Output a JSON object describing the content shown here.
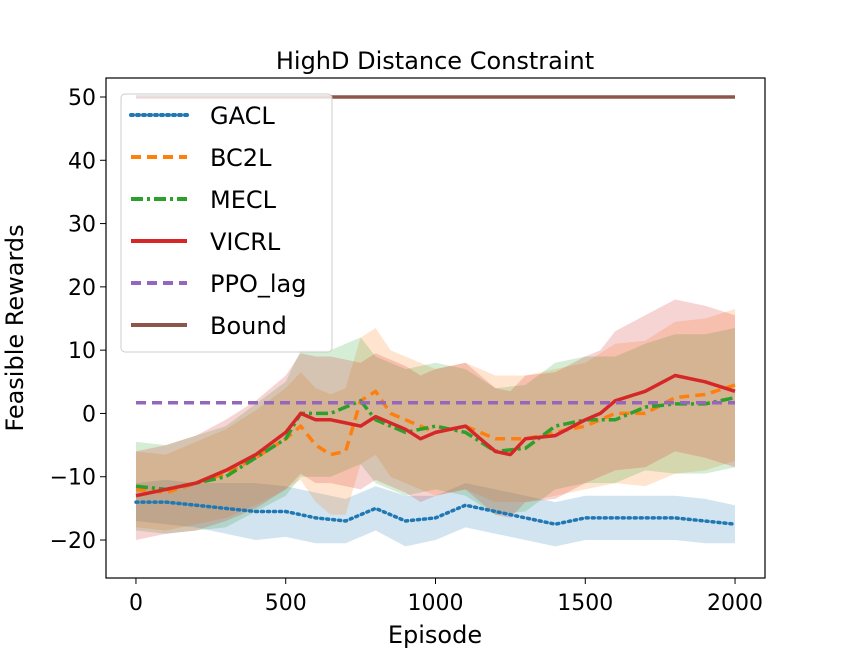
{
  "chart_data": {
    "type": "line",
    "title": "HighD Distance Constraint",
    "xlabel": "Episode",
    "ylabel": "Feasible Rewards",
    "xlim": [
      -100,
      2100
    ],
    "ylim": [
      -26,
      53
    ],
    "xticks": [
      0,
      500,
      1000,
      1500,
      2000
    ],
    "yticks": [
      -20,
      -10,
      0,
      10,
      20,
      30,
      40,
      50
    ],
    "ytick_labels": [
      "−20",
      "−10",
      "0",
      "10",
      "20",
      "30",
      "40",
      "50"
    ],
    "grid": false,
    "legend_position": "upper-left",
    "series": [
      {
        "name": "GACL",
        "color": "#1f77b4",
        "style": "dotted",
        "band_color": "#1f77b4",
        "x": [
          0,
          100,
          200,
          300,
          400,
          500,
          600,
          700,
          800,
          900,
          1000,
          1100,
          1200,
          1300,
          1400,
          1500,
          1600,
          1700,
          1800,
          1900,
          2000
        ],
        "y": [
          -14,
          -14,
          -14.5,
          -15,
          -15.5,
          -15.5,
          -16.5,
          -17,
          -15,
          -17,
          -16.5,
          -14.5,
          -15.5,
          -16.5,
          -17.5,
          -16.5,
          -16.5,
          -16.5,
          -16.5,
          -17,
          -17.5
        ],
        "band": [
          3,
          3.5,
          3.5,
          4,
          4.5,
          4,
          4,
          3.5,
          3.5,
          4,
          3.5,
          3.5,
          3.5,
          3.5,
          3.5,
          3.5,
          3.5,
          3.5,
          3.5,
          3.5,
          3
        ]
      },
      {
        "name": "BC2L",
        "color": "#ff7f0e",
        "style": "dashed",
        "band_color": "#ff7f0e",
        "x": [
          0,
          100,
          200,
          300,
          400,
          500,
          550,
          600,
          650,
          700,
          750,
          800,
          850,
          900,
          1000,
          1100,
          1200,
          1300,
          1400,
          1500,
          1600,
          1700,
          1800,
          1900,
          2000
        ],
        "y": [
          -12,
          -12.5,
          -11,
          -9.5,
          -7,
          -4,
          -2,
          -5,
          -6.5,
          -6,
          2,
          3.5,
          0,
          -1,
          -3,
          -2,
          -4,
          -4,
          -3,
          -2,
          0,
          0,
          2.5,
          3,
          4.5
        ],
        "band": [
          6,
          6,
          6.5,
          7,
          7.5,
          8,
          8.5,
          9,
          9.5,
          10,
          10,
          10,
          10,
          10,
          10,
          10,
          10,
          10,
          10,
          10,
          11,
          11.5,
          12,
          12,
          12
        ]
      },
      {
        "name": "MECL",
        "color": "#2ca02c",
        "style": "dashdot",
        "band_color": "#2ca02c",
        "x": [
          0,
          100,
          200,
          300,
          400,
          500,
          550,
          600,
          650,
          700,
          750,
          800,
          900,
          1000,
          1100,
          1200,
          1300,
          1400,
          1500,
          1600,
          1700,
          1800,
          1900,
          2000
        ],
        "y": [
          -11.5,
          -12,
          -11,
          -10,
          -7,
          -4,
          0,
          0,
          0,
          1,
          2,
          -1,
          -3,
          -2,
          -3,
          -6,
          -5.5,
          -2,
          -1,
          -1,
          1,
          1.5,
          1.5,
          2.5
        ],
        "band": [
          7,
          7,
          7.5,
          8,
          8.5,
          9,
          10,
          10,
          10,
          10,
          10,
          10,
          10,
          10,
          10,
          10,
          10,
          10,
          10,
          10,
          10,
          11,
          11,
          11
        ]
      },
      {
        "name": "VICRL",
        "color": "#d62728",
        "style": "solid",
        "band_color": "#d62728",
        "x": [
          0,
          100,
          200,
          300,
          400,
          500,
          550,
          600,
          650,
          700,
          750,
          800,
          900,
          950,
          1000,
          1100,
          1150,
          1200,
          1250,
          1300,
          1400,
          1500,
          1550,
          1600,
          1700,
          1800,
          1900,
          2000
        ],
        "y": [
          -13,
          -12,
          -11,
          -9,
          -6.5,
          -3,
          0,
          -1,
          -1,
          -1.5,
          -2,
          -0.5,
          -2.5,
          -4,
          -3,
          -2,
          -4,
          -6,
          -6.5,
          -4,
          -3.5,
          -1,
          0,
          2,
          3.5,
          6,
          5,
          3.5
        ],
        "band": [
          7,
          7,
          7.5,
          8,
          8.5,
          9,
          9.5,
          10,
          10,
          10,
          10,
          10,
          10,
          10,
          10,
          10,
          10,
          10,
          10,
          10,
          10,
          10,
          10,
          11,
          12,
          12,
          12,
          12
        ]
      },
      {
        "name": "PPO_lag",
        "color": "#9467bd",
        "style": "dashed",
        "band_color": "",
        "x": [
          0,
          2000
        ],
        "y": [
          1.7,
          1.7
        ],
        "band": []
      },
      {
        "name": "Bound",
        "color": "#8c564b",
        "style": "solid",
        "band_color": "",
        "x": [
          0,
          2000
        ],
        "y": [
          50,
          50
        ],
        "band": []
      }
    ]
  }
}
